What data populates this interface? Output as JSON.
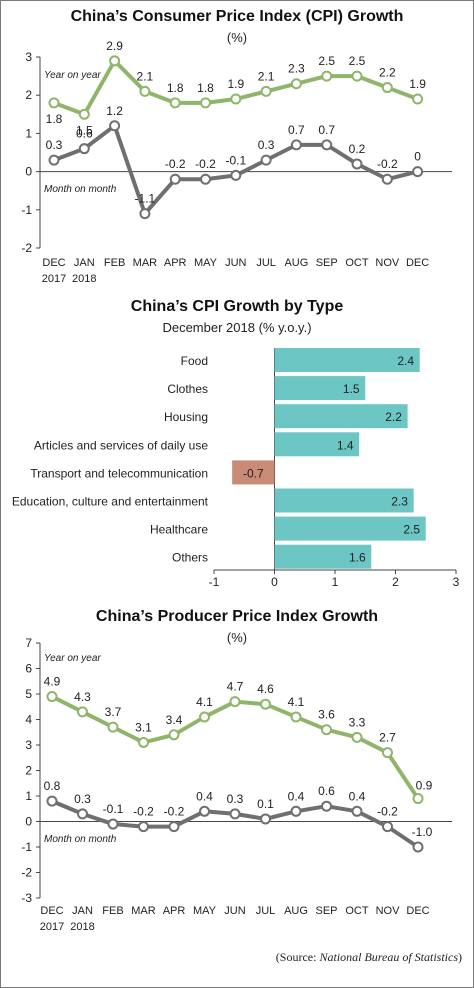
{
  "colors": {
    "yoy_line": "#8fb56a",
    "mom_line": "#6f6f6f",
    "positive_bar": "#6cc6c3",
    "negative_bar": "#c98a76",
    "axis": "#444444",
    "text": "#222222"
  },
  "chart_data": [
    {
      "type": "line",
      "title": "China’s Consumer Price Index (CPI) Growth",
      "subtitle": "(%)",
      "categories": [
        "DEC",
        "JAN",
        "FEB",
        "MAR",
        "APR",
        "MAY",
        "JUN",
        "JUL",
        "AUG",
        "SEP",
        "OCT",
        "NOV",
        "DEC"
      ],
      "year_labels": [
        "2017",
        "2018"
      ],
      "ylim": [
        -2,
        3
      ],
      "yticks": [
        -2,
        -1,
        0,
        1,
        2,
        3
      ],
      "series": [
        {
          "name": "Year on year",
          "values": [
            1.8,
            1.5,
            2.9,
            2.1,
            1.8,
            1.8,
            1.9,
            2.1,
            2.3,
            2.5,
            2.5,
            2.2,
            1.9
          ],
          "labels": [
            "1.8",
            "1.5",
            "2.9",
            "2.1",
            "1.8",
            "1.8",
            "1.9",
            "2.1",
            "2.3",
            "2.5",
            "2.5",
            "2.2",
            "1.9"
          ]
        },
        {
          "name": "Month on month",
          "values": [
            0.3,
            0.6,
            1.2,
            -1.1,
            -0.2,
            -0.2,
            -0.1,
            0.3,
            0.7,
            0.7,
            0.2,
            -0.2,
            0
          ],
          "labels": [
            "0.3",
            "0.6",
            "1.2",
            "-1.1",
            "-0.2",
            "-0.2",
            "-0.1",
            "0.3",
            "0.7",
            "0.7",
            "0.2",
            "-0.2",
            "0"
          ]
        }
      ]
    },
    {
      "type": "bar",
      "orientation": "horizontal",
      "title": "China’s CPI Growth by Type",
      "subtitle": "December 2018 (% y.o.y.)",
      "categories": [
        "Food",
        "Clothes",
        "Housing",
        "Articles and services of daily use",
        "Transport and telecommunication",
        "Education, culture and entertainment",
        "Healthcare",
        "Others"
      ],
      "values": [
        2.4,
        1.5,
        2.2,
        1.4,
        -0.7,
        2.3,
        2.5,
        1.6
      ],
      "labels": [
        "2.4",
        "1.5",
        "2.2",
        "1.4",
        "-0.7",
        "2.3",
        "2.5",
        "1.6"
      ],
      "xlim": [
        -1,
        3
      ],
      "xticks": [
        -1,
        0,
        1,
        2,
        3
      ]
    },
    {
      "type": "line",
      "title": "China’s Producer Price Index Growth",
      "subtitle": "(%)",
      "categories": [
        "DEC",
        "JAN",
        "FEB",
        "MAR",
        "APR",
        "MAY",
        "JUN",
        "JUL",
        "AUG",
        "SEP",
        "OCT",
        "NOV",
        "DEC"
      ],
      "year_labels": [
        "2017",
        "2018"
      ],
      "ylim": [
        -3,
        7
      ],
      "yticks": [
        -3,
        -2,
        -1,
        0,
        1,
        2,
        3,
        4,
        5,
        6,
        7
      ],
      "series": [
        {
          "name": "Year on year",
          "values": [
            4.9,
            4.3,
            3.7,
            3.1,
            3.4,
            4.1,
            4.7,
            4.6,
            4.1,
            3.6,
            3.3,
            2.7,
            0.9
          ],
          "labels": [
            "4.9",
            "4.3",
            "3.7",
            "3.1",
            "3.4",
            "4.1",
            "4.7",
            "4.6",
            "4.1",
            "3.6",
            "3.3",
            "2.7",
            "0.9"
          ]
        },
        {
          "name": "Month on month",
          "values": [
            0.8,
            0.3,
            -0.1,
            -0.2,
            -0.2,
            0.4,
            0.3,
            0.1,
            0.4,
            0.6,
            0.4,
            -0.2,
            -1.0
          ],
          "labels": [
            "0.8",
            "0.3",
            "-0.1",
            "-0.2",
            "-0.2",
            "0.4",
            "0.3",
            "0.1",
            "0.4",
            "0.6",
            "0.4",
            "-0.2",
            "-1.0"
          ]
        }
      ]
    }
  ],
  "source": {
    "prefix": "(Source: ",
    "name": "National Bureau of Statistics",
    "suffix": ")"
  }
}
